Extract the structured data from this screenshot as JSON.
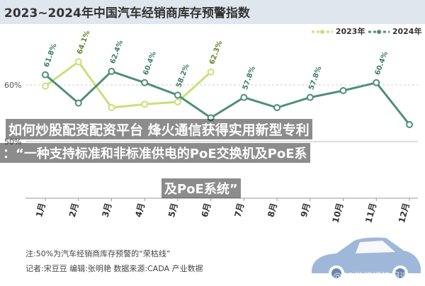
{
  "header": {
    "title": "2023~2024年中国汽车经销商库存预警指数"
  },
  "chart_data": {
    "type": "line",
    "categories": [
      "1月",
      "2月",
      "3月",
      "4月",
      "5月",
      "6月",
      "7月",
      "8月",
      "9月",
      "10月",
      "11月",
      "12月"
    ],
    "ylim": [
      40,
      70
    ],
    "yticks": [
      {
        "value": 60,
        "label": "60%"
      },
      {
        "value": 50,
        "label": "50%"
      }
    ],
    "reference": {
      "value": 50,
      "label": "50%"
    },
    "series": [
      {
        "name": "2023年",
        "color": "#c8e07a",
        "values": [
          59.8,
          64.1,
          56.0,
          56.6,
          57.0,
          62.3,
          null,
          null,
          null,
          null,
          null,
          null
        ],
        "labels": [
          "",
          "64.1%",
          "",
          "",
          "",
          "62.3%",
          "",
          "",
          "",
          "",
          "",
          ""
        ]
      },
      {
        "name": "2024年",
        "color": "#4e8f78",
        "values": [
          61.8,
          56.8,
          62.4,
          60.4,
          58.2,
          54.2,
          57.8,
          56.0,
          57.8,
          59.0,
          60.4,
          53.0
        ],
        "labels": [
          "61.8%",
          "",
          "62.4%",
          "60.4%",
          "58.2%",
          "",
          "57.8%",
          "",
          "57.8%",
          "",
          "60.4%",
          ""
        ]
      }
    ]
  },
  "overlay": {
    "line1": "如何炒股配资配资平台 烽火通信获得实用新型专利",
    "line2": "：“一种支持标准和非标准供电的PoE交换机及PoE系",
    "line3": "及PoE系统”"
  },
  "notes": {
    "note": "注:50%为汽车经销商库存预警的“荣枯线”",
    "credits": "记者:宋豆豆    编辑:张明艳    数据来源:CADA    产业数据"
  },
  "watermarks": {
    "left": "@XACX学黄金",
    "right": "@21世纪经济报道"
  }
}
